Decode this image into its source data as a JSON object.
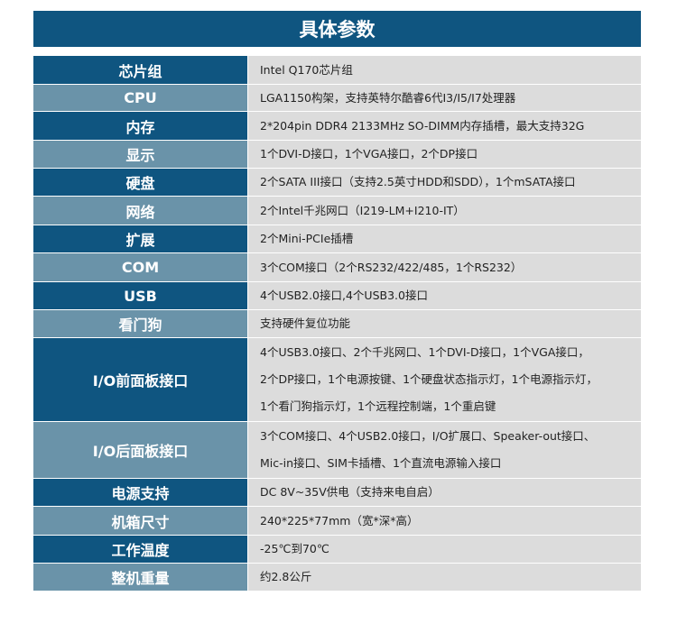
{
  "title": "具体参数",
  "colors": {
    "header": "#0f5580",
    "key_dark": "#0f5580",
    "key_light": "#6a93a9",
    "value_bg": "#dcdcdc"
  },
  "rows": [
    {
      "key": "芯片组",
      "lines": [
        "Intel Q170芯片组"
      ]
    },
    {
      "key": "CPU",
      "lines": [
        "LGA1150构架，支持英特尔酷睿6代I3/I5/I7处理器"
      ]
    },
    {
      "key": "内存",
      "lines": [
        "2*204pin DDR4 2133MHz SO-DIMM内存插槽，最大支持32G"
      ]
    },
    {
      "key": "显示",
      "lines": [
        "1个DVI-D接口，1个VGA接口，2个DP接口"
      ]
    },
    {
      "key": "硬盘",
      "lines": [
        "2个SATA III接口（支持2.5英寸HDD和SDD），1个mSATA接口"
      ]
    },
    {
      "key": "网络",
      "lines": [
        "2个Intel千兆网口（I219-LM+I210-IT）"
      ]
    },
    {
      "key": "扩展",
      "lines": [
        "2个Mini-PCIe插槽"
      ]
    },
    {
      "key": "COM",
      "lines": [
        "3个COM接口（2个RS232/422/485，1个RS232）"
      ]
    },
    {
      "key": "USB",
      "lines": [
        "4个USB2.0接口,4个USB3.0接口"
      ]
    },
    {
      "key": "看门狗",
      "lines": [
        "支持硬件复位功能"
      ]
    },
    {
      "key": "I/O前面板接口",
      "lines": [
        "4个USB3.0接口、2个千兆网口、1个DVI-D接口，1个VGA接口，",
        "2个DP接口，1个电源按键、1个硬盘状态指示灯，1个电源指示灯，",
        "1个看门狗指示灯，1个远程控制端，1个重启键"
      ]
    },
    {
      "key": "I/O后面板接口",
      "lines": [
        "3个COM接口、4个USB2.0接口，I/O扩展口、Speaker-out接口、",
        "Mic-in接口、SIM卡插槽、1个直流电源输入接口"
      ]
    },
    {
      "key": "电源支持",
      "lines": [
        "DC 8V~35V供电（支持来电自启）"
      ]
    },
    {
      "key": "机箱尺寸",
      "lines": [
        "240*225*77mm（宽*深*高）"
      ]
    },
    {
      "key": "工作温度",
      "lines": [
        "-25℃到70℃"
      ]
    },
    {
      "key": "整机重量",
      "lines": [
        "约2.8公斤"
      ]
    }
  ]
}
